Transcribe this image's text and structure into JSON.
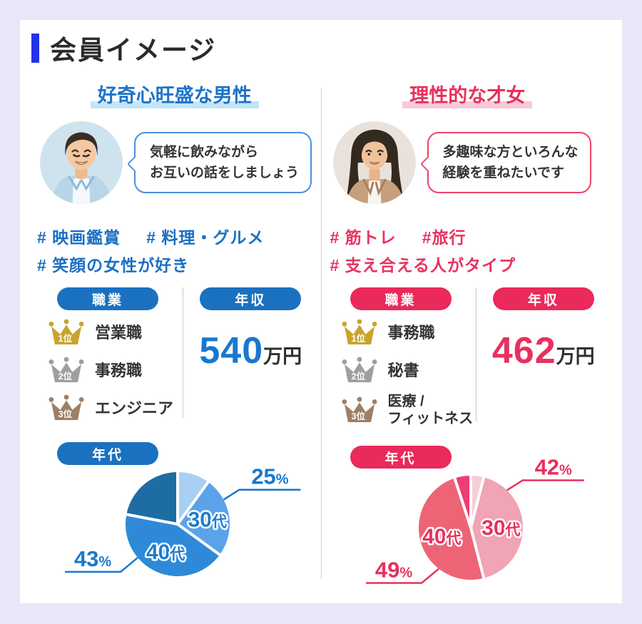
{
  "page": {
    "title": "会員イメージ"
  },
  "profiles": [
    {
      "id": "male",
      "title": "好奇心旺盛な男性",
      "accent": "#1b74c8",
      "highlight": "#c5e5f8",
      "bubble_border": "#4a90d9",
      "pill": "#1a71c0",
      "number_color": "#1878cf",
      "tag_color": "#1b6fc3",
      "bubble": {
        "line1": "気軽に飲みながら",
        "line2": "お互いの話をしましょう"
      },
      "tags_line1": [
        "# 映画鑑賞",
        "# 料理・グルメ"
      ],
      "tags_line2": [
        "# 笑顔の女性が好き"
      ],
      "occupation_label": "職業",
      "occupation_ranks": [
        {
          "rank": "1位",
          "label": "営業職"
        },
        {
          "rank": "2位",
          "label": "事務職"
        },
        {
          "rank": "3位",
          "label": "エンジニア"
        }
      ],
      "income_label": "年収",
      "income_value": "540",
      "income_unit": "万円",
      "age_label": "年代"
    },
    {
      "id": "female",
      "title": "理性的な才女",
      "accent": "#e8305e",
      "highlight": "#f8c9d7",
      "bubble_border": "#f0436b",
      "pill": "#e92a5a",
      "number_color": "#e8305e",
      "tag_color": "#e8335f",
      "bubble": {
        "line1": "多趣味な方といろんな",
        "line2": "経験を重ねたいです"
      },
      "tags_line1": [
        "# 筋トレ",
        "#旅行"
      ],
      "tags_line2": [
        "# 支え合える人がタイプ"
      ],
      "occupation_label": "職業",
      "occupation_ranks": [
        {
          "rank": "1位",
          "label": "事務職"
        },
        {
          "rank": "2位",
          "label": "秘書"
        },
        {
          "rank": "3位",
          "label": "医療 /\nフィットネス"
        }
      ],
      "income_label": "年収",
      "income_value": "462",
      "income_unit": "万円",
      "age_label": "年代"
    }
  ],
  "chart_data": [
    {
      "type": "pie",
      "title": "年代",
      "accent": "#1878cf",
      "label_color": "#1f7ccc",
      "start": "12-oclock",
      "direction": "clockwise",
      "slices": [
        {
          "label": "",
          "value": 10,
          "color": "#a9cff3"
        },
        {
          "label": "30代",
          "value": 25,
          "color": "#5ba3e9",
          "labeled": true,
          "callout": {
            "text": "25%",
            "side": "top-right",
            "attach_angle": 62
          }
        },
        {
          "label": "40代",
          "value": 43,
          "color": "#2e8ad8",
          "labeled": true,
          "callout": {
            "text": "43%",
            "side": "bottom-left",
            "attach_angle": 230
          }
        },
        {
          "label": "",
          "value": 22,
          "color": "#1d6da3"
        }
      ]
    },
    {
      "type": "pie",
      "title": "年代",
      "accent": "#e8305e",
      "label_color": "#e8305e",
      "start": "12-oclock",
      "direction": "clockwise",
      "slices": [
        {
          "label": "",
          "value": 4,
          "color": "#f6cdd5"
        },
        {
          "label": "30代",
          "value": 42,
          "color": "#f0a4b5",
          "labeled": true,
          "callout": {
            "text": "42%",
            "side": "top-right",
            "attach_angle": 44
          }
        },
        {
          "label": "40代",
          "value": 49,
          "color": "#ee6477",
          "labeled": true,
          "callout": {
            "text": "49%",
            "side": "bottom-left",
            "attach_angle": 218
          }
        },
        {
          "label": "",
          "value": 5,
          "color": "#ee3c74"
        }
      ]
    }
  ]
}
